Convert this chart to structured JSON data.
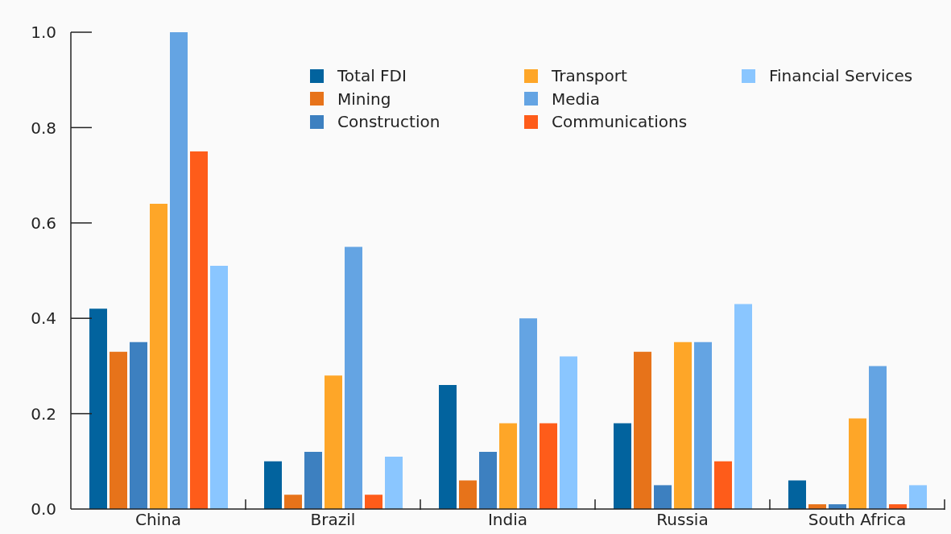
{
  "chart_data": {
    "type": "bar",
    "categories": [
      "China",
      "Brazil",
      "India",
      "Russia",
      "South Africa"
    ],
    "series": [
      {
        "name": "Total FDI",
        "color": "#02639e",
        "values": [
          0.42,
          0.1,
          0.26,
          0.18,
          0.06
        ]
      },
      {
        "name": "Mining",
        "color": "#e7731a",
        "values": [
          0.33,
          0.03,
          0.06,
          0.33,
          0.01
        ]
      },
      {
        "name": "Construction",
        "color": "#3d80c0",
        "values": [
          0.35,
          0.12,
          0.12,
          0.05,
          0.01
        ]
      },
      {
        "name": "Transport",
        "color": "#fea628",
        "values": [
          0.64,
          0.28,
          0.18,
          0.35,
          0.19
        ]
      },
      {
        "name": "Media",
        "color": "#64a4e3",
        "values": [
          1.0,
          0.55,
          0.4,
          0.35,
          0.3
        ]
      },
      {
        "name": "Communications",
        "color": "#fe5c1a",
        "values": [
          0.75,
          0.03,
          0.18,
          0.1,
          0.01
        ]
      },
      {
        "name": "Financial Services",
        "color": "#8ac6ff",
        "values": [
          0.51,
          0.11,
          0.32,
          0.43,
          0.05
        ]
      }
    ],
    "ylim": [
      0,
      1
    ],
    "yticks": [
      {
        "value": 0,
        "label": "0.0"
      },
      0.2,
      0.4,
      0.6,
      0.8,
      {
        "value": 1,
        "label": "1.0"
      }
    ],
    "legend": "top right"
  }
}
